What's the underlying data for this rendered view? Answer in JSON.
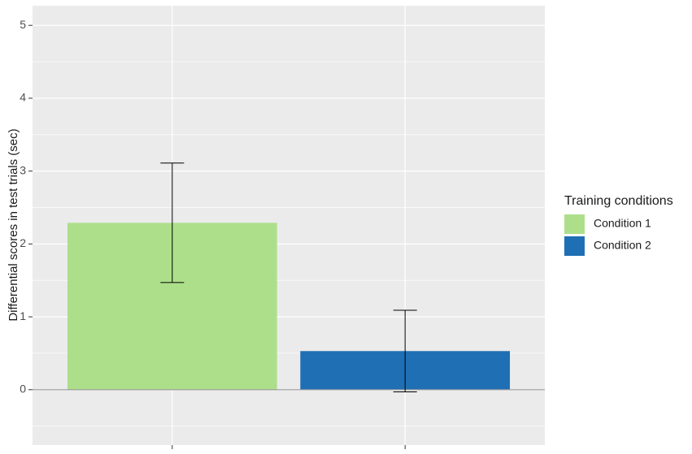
{
  "chart_data": {
    "type": "bar",
    "y_label": "Differential scores in test trials (sec)",
    "categories": [
      null,
      null
    ],
    "series": [
      {
        "name": "Condition 1",
        "color": "#addf8b",
        "values": [
          2.29,
          null
        ],
        "errors": [
          0.82,
          null
        ]
      },
      {
        "name": "Condition 2",
        "color": "#1f6fb4",
        "values": [
          null,
          0.53
        ],
        "errors": [
          null,
          0.56
        ]
      }
    ],
    "legend_title": "Training conditions",
    "legend": "right",
    "hline": 0,
    "xlim": [
      0.4,
      2.6
    ],
    "ylim": [
      -0.76,
      5.27
    ],
    "yticks": [
      0,
      1,
      2,
      3,
      4,
      5
    ],
    "grid": true
  }
}
